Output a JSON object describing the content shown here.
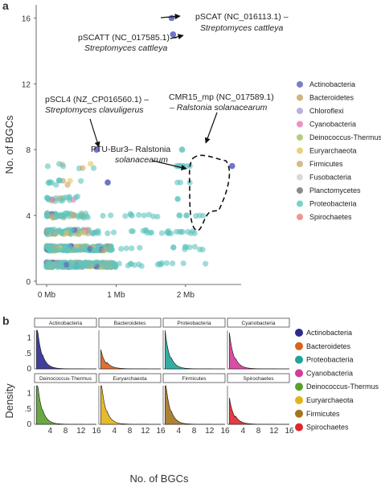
{
  "panel_a_letter": "a",
  "panel_b_letter": "b",
  "chart_data": [
    {
      "type": "scatter",
      "ylabel": "No. of BGCs",
      "x_tick_labels": [
        "0 Mb",
        "1 Mb",
        "2 Mb"
      ],
      "x_ticks": [
        0,
        1,
        2
      ],
      "xlim": [
        -0.15,
        2.8
      ],
      "y_tick_labels": [
        "0",
        "4",
        "8",
        "12",
        "16"
      ],
      "y_ticks": [
        0,
        4,
        8,
        12,
        16
      ],
      "ylim": [
        -0.2,
        16.8
      ],
      "legend_position": "right",
      "legend": [
        {
          "name": "Actinobacteria",
          "color": "#5b5bbd"
        },
        {
          "name": "Bacteroidetes",
          "color": "#c8a15b"
        },
        {
          "name": "Chloroflexi",
          "color": "#a99bd8"
        },
        {
          "name": "Cyanobacteria",
          "color": "#e377b8"
        },
        {
          "name": "Deinococcus-Thermus",
          "color": "#a3c163"
        },
        {
          "name": "Euryarchaeota",
          "color": "#e6c55a"
        },
        {
          "name": "Firmicutes",
          "color": "#c9aa6f"
        },
        {
          "name": "Fusobacteria",
          "color": "#cfcfcf"
        },
        {
          "name": "Planctomycetes",
          "color": "#6e6e6e"
        },
        {
          "name": "Proteobacteria",
          "color": "#5fc4be"
        },
        {
          "name": "Spirochaetes",
          "color": "#ef7b73"
        }
      ],
      "highlighted_points": [
        {
          "x": 1.8,
          "y": 16,
          "group": "Actinobacteria"
        },
        {
          "x": 1.82,
          "y": 15,
          "group": "Actinobacteria"
        },
        {
          "x": 0.72,
          "y": 8,
          "group": "Actinobacteria"
        },
        {
          "x": 1.95,
          "y": 8,
          "group": "Proteobacteria"
        },
        {
          "x": 2.67,
          "y": 7,
          "group": "Actinobacteria"
        },
        {
          "x": 0.88,
          "y": 6,
          "group": "Actinobacteria"
        }
      ],
      "annotations": [
        {
          "line1": "pSCAT (NC_016113.1) –",
          "line2": "Streptomyces cattleya"
        },
        {
          "line1": "pSCATT (NC_017585.1) –",
          "line2": "Streptomyces cattleya"
        },
        {
          "line1": "pSCL4 (NZ_CP016560.1) –",
          "line2": "Streptomyces clavuligerus"
        },
        {
          "line1": "CMR15_mp (NC_017589.1)",
          "line2": "– Ralstonia solanacearum"
        },
        {
          "line1": "PTU-Bur3– Ralstonia",
          "line2": "solanacearum"
        }
      ]
    },
    {
      "type": "area",
      "ylabel": "Density",
      "xlabel": "No. of BGCs",
      "x_tick_labels": [
        "4",
        "8",
        "12",
        "16"
      ],
      "y_tick_labels": [
        "0",
        ".5",
        "1"
      ],
      "xlim": [
        0,
        16
      ],
      "ylim": [
        0,
        1.25
      ],
      "legend_position": "right",
      "panels": [
        {
          "name": "Actinobacteria",
          "color": "#2b2b8f",
          "peak": 1.05
        },
        {
          "name": "Bacteroidetes",
          "color": "#d9621c",
          "peak": 0.4
        },
        {
          "name": "Proteobacteria",
          "color": "#1fa39a",
          "peak": 0.8
        },
        {
          "name": "Cyanobacteria",
          "color": "#d13c9a",
          "peak": 0.75
        },
        {
          "name": "Deinococcus-Thermus",
          "color": "#5aa02c",
          "peak": 1.1
        },
        {
          "name": "Euryarchaeota",
          "color": "#e3b317",
          "peak": 1.0
        },
        {
          "name": "Firmicutes",
          "color": "#a3751f",
          "peak": 1.0
        },
        {
          "name": "Spirochaetes",
          "color": "#e0262e",
          "peak": 0.55
        }
      ],
      "legend": [
        {
          "name": "Actinobacteria",
          "color": "#2b2b8f"
        },
        {
          "name": "Bacteroidetes",
          "color": "#d9621c"
        },
        {
          "name": "Proteobacteria",
          "color": "#1fa39a"
        },
        {
          "name": "Cyanobacteria",
          "color": "#d13c9a"
        },
        {
          "name": "Deinococcus-Thermus",
          "color": "#5aa02c"
        },
        {
          "name": "Euryarchaeota",
          "color": "#e3b317"
        },
        {
          "name": "Firmicutes",
          "color": "#a3751f"
        },
        {
          "name": "Spirochaetes",
          "color": "#e0262e"
        }
      ]
    }
  ]
}
